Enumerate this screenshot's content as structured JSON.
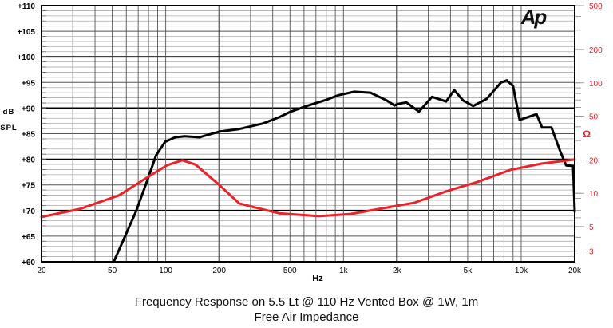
{
  "chart_data": {
    "type": "line",
    "title": "Frequency Response on 5.5 Lt @ 110 Hz Vented Box @ 1W, 1m",
    "subtitle": "Free Air Impedance",
    "xlabel": "Hz",
    "ylabel": "dB SPL",
    "y2label": "Ω",
    "xscale": "log",
    "xlim": [
      20,
      20000
    ],
    "ylim": [
      60,
      110
    ],
    "y2scale": "log",
    "y2lim": [
      2.4,
      500
    ],
    "grid": true,
    "logo": "Ap",
    "x_ticks": [
      {
        "v": 20,
        "label": "20"
      },
      {
        "v": 50,
        "label": "50"
      },
      {
        "v": 100,
        "label": "100"
      },
      {
        "v": 200,
        "label": "200"
      },
      {
        "v": 500,
        "label": "500"
      },
      {
        "v": 1000,
        "label": "1k"
      },
      {
        "v": 2000,
        "label": "2k"
      },
      {
        "v": 5000,
        "label": "5k"
      },
      {
        "v": 10000,
        "label": "10k"
      },
      {
        "v": 20000,
        "label": "20k"
      }
    ],
    "y_ticks": [
      {
        "v": 110,
        "label": "+110"
      },
      {
        "v": 105,
        "label": "+105"
      },
      {
        "v": 100,
        "label": "+100"
      },
      {
        "v": 95,
        "label": "+95"
      },
      {
        "v": 90,
        "label": "+90"
      },
      {
        "v": 85,
        "label": "+85"
      },
      {
        "v": 80,
        "label": "+80"
      },
      {
        "v": 75,
        "label": "+75"
      },
      {
        "v": 70,
        "label": "+70"
      },
      {
        "v": 65,
        "label": "+65"
      },
      {
        "v": 60,
        "label": "+60"
      }
    ],
    "y2_ticks": [
      {
        "v": 500,
        "label": "500"
      },
      {
        "v": 200,
        "label": "200"
      },
      {
        "v": 100,
        "label": "100"
      },
      {
        "v": 50,
        "label": "50"
      },
      {
        "v": 20,
        "label": "20"
      },
      {
        "v": 10,
        "label": "10"
      },
      {
        "v": 5,
        "label": "5"
      },
      {
        "v": 3,
        "label": "3"
      }
    ],
    "series": [
      {
        "axis": "left",
        "color": "#000000",
        "x": [
          51,
          58,
          68,
          79,
          88,
          99,
          113,
          128,
          155,
          200,
          259,
          353,
          433,
          505,
          620,
          800,
          936,
          1150,
          1420,
          1750,
          1940,
          2010,
          2260,
          2660,
          3150,
          3780,
          4200,
          4710,
          5370,
          6400,
          7700,
          8300,
          9000,
          9800,
          12200,
          13100,
          14800,
          16600,
          17900,
          19600,
          20000
        ],
        "y": [
          60,
          64.4,
          69.8,
          76,
          80.7,
          83.4,
          84.3,
          84.5,
          84.3,
          85.4,
          85.9,
          87,
          88.2,
          89.3,
          90.4,
          91.6,
          92.5,
          93.2,
          93,
          91.5,
          90.5,
          90.8,
          91.1,
          89.3,
          92.2,
          91.3,
          93.5,
          91.5,
          90.4,
          91.8,
          95,
          95.4,
          94.3,
          87.7,
          88.8,
          86.2,
          86.2,
          81.5,
          78.8,
          78.7,
          69.8
        ]
      },
      {
        "axis": "right",
        "color": "#e8232a",
        "x": [
          20,
          32.8,
          54.7,
          79,
          102,
          124,
          147,
          200,
          259,
          318,
          433,
          725,
          1100,
          2000,
          2500,
          3780,
          5700,
          8700,
          13100,
          20000
        ],
        "y": [
          6.1,
          7.2,
          9.6,
          14,
          18,
          19.9,
          18.2,
          11.9,
          8.1,
          7.45,
          6.6,
          6.2,
          6.5,
          7.7,
          8.2,
          10.4,
          12.7,
          16.3,
          18.6,
          20.2
        ]
      }
    ]
  }
}
